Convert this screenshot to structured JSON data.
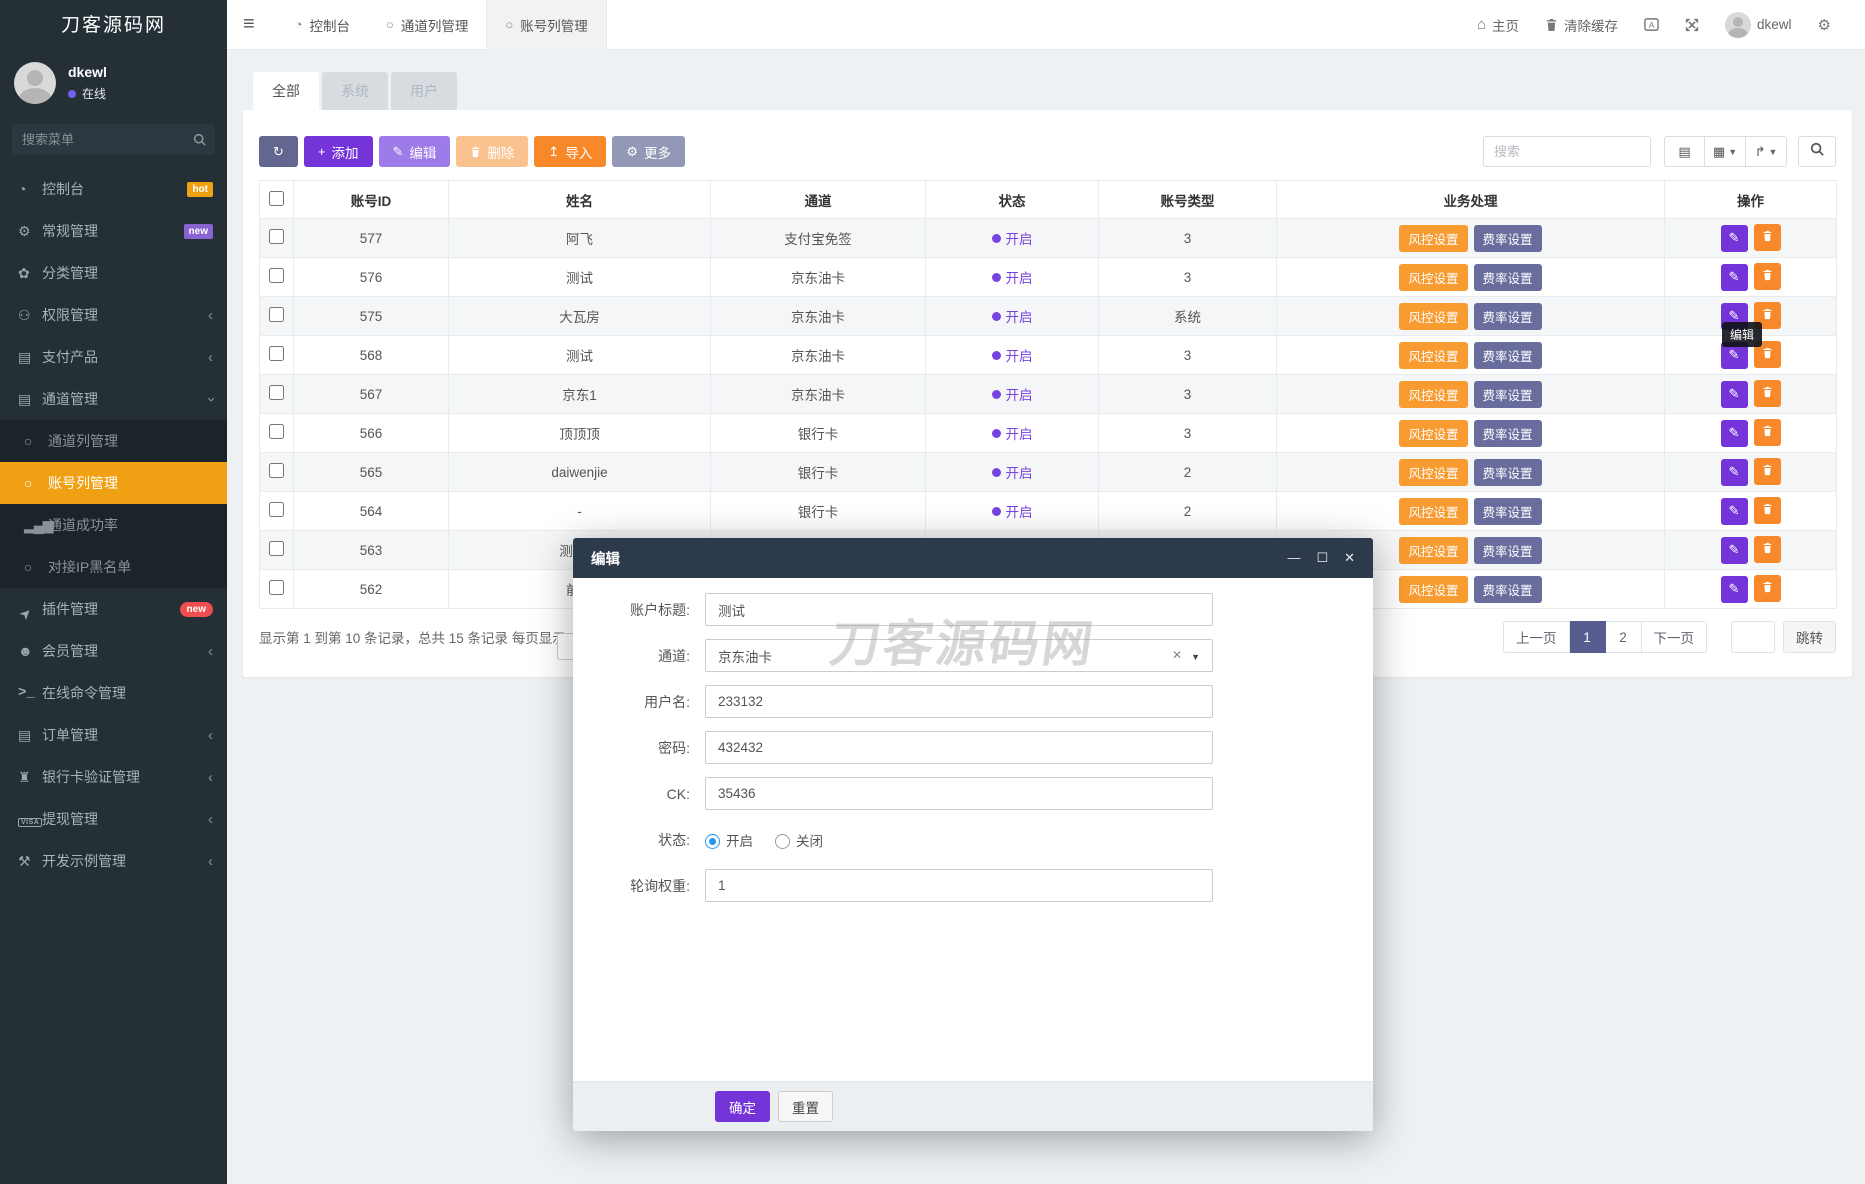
{
  "app": {
    "window_title": "刀客源码网"
  },
  "sidebar": {
    "logo": "刀客源码网",
    "user": {
      "name": "dkewl",
      "status": "在线",
      "status_color": "#7460ee"
    },
    "search_placeholder": "搜索菜单",
    "items": [
      {
        "key": "dashboard",
        "label": "控制台",
        "icon": "dashboard",
        "badge": {
          "text": "hot",
          "bg": "#f0a113",
          "pill": false
        }
      },
      {
        "key": "general",
        "label": "常规管理",
        "icon": "gears",
        "badge": {
          "text": "new",
          "bg": "#8a63d2",
          "pill": false
        }
      },
      {
        "key": "category",
        "label": "分类管理",
        "icon": "leaf"
      },
      {
        "key": "permission",
        "label": "权限管理",
        "icon": "users",
        "chevron": "left"
      },
      {
        "key": "pay-product",
        "label": "支付产品",
        "icon": "list",
        "chevron": "left"
      },
      {
        "key": "channel-mgmt",
        "label": "通道管理",
        "icon": "list",
        "chevron": "down"
      },
      {
        "key": "channel-list",
        "label": "通道列管理",
        "icon": "circle",
        "sub": true
      },
      {
        "key": "account-list",
        "label": "账号列管理",
        "icon": "circle",
        "sub": true,
        "active": true
      },
      {
        "key": "channel-success",
        "label": "通道成功率",
        "icon": "chart",
        "sub": true
      },
      {
        "key": "ip-blacklist",
        "label": "对接IP黑名单",
        "icon": "circle",
        "sub": true
      },
      {
        "key": "plugin",
        "label": "插件管理",
        "icon": "rocket",
        "badge": {
          "text": "new",
          "bg": "#ee4e4e",
          "pill": true
        }
      },
      {
        "key": "member",
        "label": "会员管理",
        "icon": "user",
        "chevron": "left"
      },
      {
        "key": "online-cmd",
        "label": "在线命令管理",
        "icon": "terminal"
      },
      {
        "key": "order",
        "label": "订单管理",
        "icon": "list",
        "chevron": "left"
      },
      {
        "key": "bankcard-verify",
        "label": "银行卡验证管理",
        "icon": "bank",
        "chevron": "left"
      },
      {
        "key": "withdraw",
        "label": "提现管理",
        "icon": "visa",
        "chevron": "left"
      },
      {
        "key": "dev-example",
        "label": "开发示例管理",
        "icon": "magic",
        "chevron": "left"
      }
    ]
  },
  "topbar": {
    "tabs": [
      {
        "key": "dashboard",
        "label": "控制台",
        "icon": "dashboard"
      },
      {
        "key": "channel-list",
        "label": "通道列管理",
        "icon": "circle"
      },
      {
        "key": "account-list",
        "label": "账号列管理",
        "icon": "circle",
        "active": true
      }
    ],
    "home_label": "主页",
    "clear_cache_label": "清除缓存",
    "user_name": "dkewl"
  },
  "filter_tabs": [
    {
      "key": "all",
      "label": "全部",
      "active": true
    },
    {
      "key": "system",
      "label": "系统"
    },
    {
      "key": "user",
      "label": "用户"
    }
  ],
  "toolbar": {
    "buttons": [
      {
        "key": "refresh",
        "label": "",
        "icon": "refresh",
        "bg": "#63678f"
      },
      {
        "key": "add",
        "label": "添加",
        "icon": "plus",
        "bg": "#7434d8"
      },
      {
        "key": "edit",
        "label": "编辑",
        "icon": "pencil",
        "bg": "#9d7be8"
      },
      {
        "key": "delete",
        "label": "删除",
        "icon": "trash",
        "bg": "#f9c28f"
      },
      {
        "key": "import",
        "label": "导入",
        "icon": "upload",
        "bg": "#f8892b"
      },
      {
        "key": "more",
        "label": "更多",
        "icon": "gear",
        "bg": "#9398b6"
      }
    ],
    "search_placeholder": "搜索"
  },
  "table": {
    "headers": [
      "账号ID",
      "姓名",
      "通道",
      "状态",
      "账号类型",
      "业务处理",
      "操作"
    ],
    "status_on": "开启",
    "badges": [
      "风控设置",
      "费率设置"
    ],
    "rows": [
      {
        "id": "577",
        "name": "阿飞",
        "channel": "支付宝免签",
        "status": "开启",
        "type": "3"
      },
      {
        "id": "576",
        "name": "测试",
        "channel": "京东油卡",
        "status": "开启",
        "type": "3"
      },
      {
        "id": "575",
        "name": "大瓦房",
        "channel": "京东油卡",
        "status": "开启",
        "type": "系统"
      },
      {
        "id": "568",
        "name": "测试",
        "channel": "京东油卡",
        "status": "开启",
        "type": "3"
      },
      {
        "id": "567",
        "name": "京东1",
        "channel": "京东油卡",
        "status": "开启",
        "type": "3"
      },
      {
        "id": "566",
        "name": "顶顶顶",
        "channel": "银行卡",
        "status": "开启",
        "type": "3"
      },
      {
        "id": "565",
        "name": "daiwenjie",
        "channel": "银行卡",
        "status": "开启",
        "type": "2"
      },
      {
        "id": "564",
        "name": "-",
        "channel": "银行卡",
        "status": "开启",
        "type": "2"
      },
      {
        "id": "563",
        "name": "测试支",
        "channel": "",
        "status": "",
        "type": ""
      },
      {
        "id": "562",
        "name": "前台",
        "channel": "",
        "status": "",
        "type": ""
      }
    ]
  },
  "pagination": {
    "summary": "显示第 1 到第 10 条记录，总共 15 条记录 每页显示",
    "prev": "上一页",
    "pages": [
      "1",
      "2"
    ],
    "active_page": "1",
    "next": "下一页",
    "jump_value": "",
    "jump_label": "跳转"
  },
  "modal": {
    "title": "编辑",
    "fields": [
      {
        "key": "account-title",
        "label": "账户标题:",
        "type": "text",
        "value": "测试"
      },
      {
        "key": "channel",
        "label": "通道:",
        "type": "select",
        "value": "京东油卡"
      },
      {
        "key": "username",
        "label": "用户名:",
        "type": "text",
        "value": "233132"
      },
      {
        "key": "password",
        "label": "密码:",
        "type": "text",
        "value": "432432"
      },
      {
        "key": "ck",
        "label": "CK:",
        "type": "text",
        "value": "35436"
      },
      {
        "key": "status",
        "label": "状态:",
        "type": "radio",
        "options": [
          {
            "label": "开启",
            "checked": true
          },
          {
            "label": "关闭",
            "checked": false
          }
        ]
      },
      {
        "key": "poll-weight",
        "label": "轮询权重:",
        "type": "text",
        "value": "1"
      }
    ],
    "confirm_label": "确定",
    "reset_label": "重置"
  },
  "tooltip": {
    "text": "编辑"
  },
  "watermark": "刀客源码网"
}
